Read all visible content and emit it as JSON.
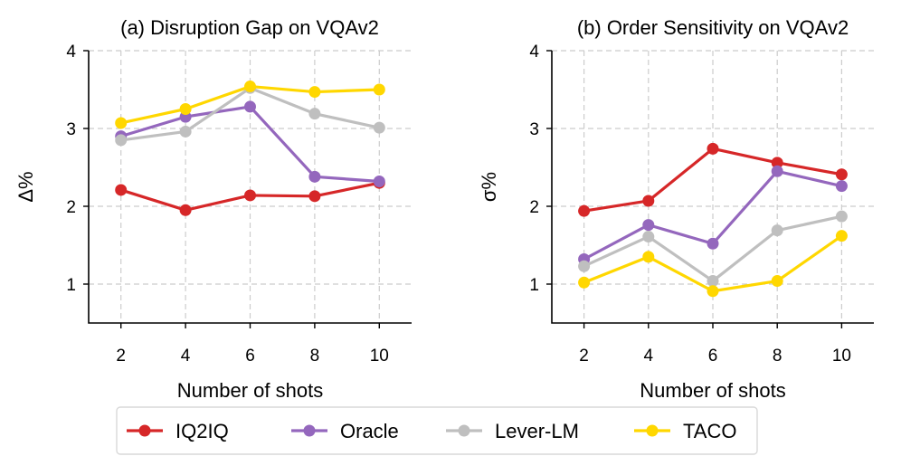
{
  "chart_data": [
    {
      "type": "line",
      "title": "(a) Disruption Gap on VQAv2",
      "xlabel": "Number of shots",
      "ylabel": "Δ%",
      "x": [
        2,
        4,
        6,
        8,
        10
      ],
      "xticks": [
        "2",
        "4",
        "6",
        "8",
        "10"
      ],
      "yticks": [
        "1",
        "2",
        "3",
        "4"
      ],
      "xlim": [
        1.0,
        11.0
      ],
      "ylim": [
        0.5,
        4.0
      ],
      "grid": true,
      "series": [
        {
          "name": "IQ2IQ",
          "color": "#d62728",
          "values": [
            2.21,
            1.95,
            2.14,
            2.13,
            2.3
          ]
        },
        {
          "name": "Oracle",
          "color": "#9467bd",
          "values": [
            2.9,
            3.15,
            3.28,
            2.38,
            2.32
          ]
        },
        {
          "name": "Lever-LM",
          "color": "#bfbfbf",
          "values": [
            2.85,
            2.96,
            3.52,
            3.19,
            3.01
          ]
        },
        {
          "name": "TACO",
          "color": "#ffd700",
          "values": [
            3.07,
            3.25,
            3.54,
            3.47,
            3.5
          ]
        }
      ]
    },
    {
      "type": "line",
      "title": "(b) Order Sensitivity on VQAv2",
      "xlabel": "Number of shots",
      "ylabel": "σ%",
      "x": [
        2,
        4,
        6,
        8,
        10
      ],
      "xticks": [
        "2",
        "4",
        "6",
        "8",
        "10"
      ],
      "yticks": [
        "1",
        "2",
        "3",
        "4"
      ],
      "xlim": [
        1.0,
        11.0
      ],
      "ylim": [
        0.5,
        4.0
      ],
      "grid": true,
      "series": [
        {
          "name": "IQ2IQ",
          "color": "#d62728",
          "values": [
            1.94,
            2.07,
            2.74,
            2.56,
            2.41
          ]
        },
        {
          "name": "Oracle",
          "color": "#9467bd",
          "values": [
            1.32,
            1.76,
            1.52,
            2.45,
            2.26
          ]
        },
        {
          "name": "Lever-LM",
          "color": "#bfbfbf",
          "values": [
            1.23,
            1.61,
            1.04,
            1.69,
            1.87
          ]
        },
        {
          "name": "TACO",
          "color": "#ffd700",
          "values": [
            1.02,
            1.35,
            0.91,
            1.04,
            1.62
          ]
        }
      ]
    }
  ],
  "legend": {
    "placement": "bottom-center",
    "entries": [
      "IQ2IQ",
      "Oracle",
      "Lever-LM",
      "TACO"
    ],
    "colors": [
      "#d62728",
      "#9467bd",
      "#bfbfbf",
      "#ffd700"
    ]
  }
}
